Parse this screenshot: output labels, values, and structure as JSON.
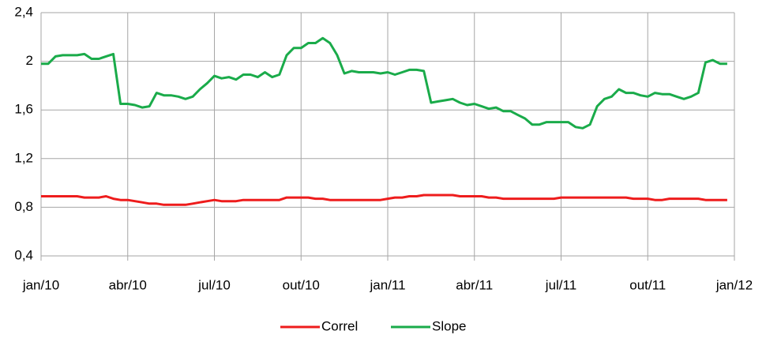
{
  "chart_data": {
    "type": "line",
    "x": [
      0,
      0.25,
      0.5,
      0.75,
      1,
      1.25,
      1.5,
      1.75,
      2,
      2.25,
      2.5,
      2.75,
      3,
      3.25,
      3.5,
      3.75,
      4,
      4.25,
      4.5,
      4.75,
      5,
      5.25,
      5.5,
      5.75,
      6,
      6.25,
      6.5,
      6.75,
      7,
      7.25,
      7.5,
      7.75,
      8,
      8.25,
      8.5,
      8.75,
      9,
      9.25,
      9.5,
      9.75,
      10,
      10.25,
      10.5,
      10.75,
      11,
      11.25,
      11.5,
      11.75,
      12,
      12.25,
      12.5,
      12.75,
      13,
      13.25,
      13.5,
      13.75,
      14,
      14.25,
      14.5,
      14.75,
      15,
      15.25,
      15.5,
      15.75,
      16,
      16.25,
      16.5,
      16.75,
      17,
      17.25,
      17.5,
      17.75,
      18,
      18.25,
      18.5,
      18.75,
      19,
      19.25,
      19.5,
      19.75,
      20,
      20.25,
      20.5,
      20.75,
      21,
      21.25,
      21.5,
      21.75,
      22,
      22.25,
      22.5,
      22.75,
      23,
      23.25,
      23.5,
      23.75
    ],
    "series": [
      {
        "name": "Correl",
        "color": "#ee1c1c",
        "values": [
          0.89,
          0.89,
          0.89,
          0.89,
          0.89,
          0.89,
          0.88,
          0.88,
          0.88,
          0.89,
          0.87,
          0.86,
          0.86,
          0.85,
          0.84,
          0.83,
          0.83,
          0.82,
          0.82,
          0.82,
          0.82,
          0.83,
          0.84,
          0.85,
          0.86,
          0.85,
          0.85,
          0.85,
          0.86,
          0.86,
          0.86,
          0.86,
          0.86,
          0.86,
          0.88,
          0.88,
          0.88,
          0.88,
          0.87,
          0.87,
          0.86,
          0.86,
          0.86,
          0.86,
          0.86,
          0.86,
          0.86,
          0.86,
          0.87,
          0.88,
          0.88,
          0.89,
          0.89,
          0.9,
          0.9,
          0.9,
          0.9,
          0.9,
          0.89,
          0.89,
          0.89,
          0.89,
          0.88,
          0.88,
          0.87,
          0.87,
          0.87,
          0.87,
          0.87,
          0.87,
          0.87,
          0.87,
          0.88,
          0.88,
          0.88,
          0.88,
          0.88,
          0.88,
          0.88,
          0.88,
          0.88,
          0.88,
          0.87,
          0.87,
          0.87,
          0.86,
          0.86,
          0.87,
          0.87,
          0.87,
          0.87,
          0.87,
          0.86,
          0.86,
          0.86,
          0.86
        ]
      },
      {
        "name": "Slope",
        "color": "#1aab4a",
        "values": [
          1.98,
          1.98,
          2.04,
          2.05,
          2.05,
          2.05,
          2.06,
          2.02,
          2.02,
          2.04,
          2.06,
          1.65,
          1.65,
          1.64,
          1.62,
          1.63,
          1.74,
          1.72,
          1.72,
          1.71,
          1.69,
          1.71,
          1.77,
          1.82,
          1.88,
          1.86,
          1.87,
          1.85,
          1.89,
          1.89,
          1.87,
          1.91,
          1.87,
          1.89,
          2.05,
          2.11,
          2.11,
          2.15,
          2.15,
          2.19,
          2.15,
          2.05,
          1.9,
          1.92,
          1.91,
          1.91,
          1.91,
          1.9,
          1.91,
          1.89,
          1.91,
          1.93,
          1.93,
          1.92,
          1.66,
          1.67,
          1.68,
          1.69,
          1.66,
          1.64,
          1.65,
          1.63,
          1.61,
          1.62,
          1.59,
          1.59,
          1.56,
          1.53,
          1.48,
          1.48,
          1.5,
          1.5,
          1.5,
          1.5,
          1.46,
          1.45,
          1.48,
          1.63,
          1.69,
          1.71,
          1.77,
          1.74,
          1.74,
          1.72,
          1.71,
          1.74,
          1.73,
          1.73,
          1.71,
          1.69,
          1.71,
          1.74,
          1.99,
          2.01,
          1.98,
          1.98
        ]
      }
    ],
    "xlim": [
      0,
      24
    ],
    "xticks": [
      {
        "value": 0,
        "label": "jan/10"
      },
      {
        "value": 3,
        "label": "abr/10"
      },
      {
        "value": 6,
        "label": "jul/10"
      },
      {
        "value": 9,
        "label": "out/10"
      },
      {
        "value": 12,
        "label": "jan/11"
      },
      {
        "value": 15,
        "label": "abr/11"
      },
      {
        "value": 18,
        "label": "jul/11"
      },
      {
        "value": 21,
        "label": "out/11"
      },
      {
        "value": 24,
        "label": "jan/12"
      }
    ],
    "ylim": [
      0.4,
      2.4
    ],
    "yticks": [
      {
        "value": 0.4,
        "label": "0,4"
      },
      {
        "value": 0.8,
        "label": "0,8"
      },
      {
        "value": 1.2,
        "label": "1,2"
      },
      {
        "value": 1.6,
        "label": "1,6"
      },
      2,
      {
        "value": 2.4,
        "label": "2,4"
      }
    ],
    "grid": true,
    "legend": "bottom"
  }
}
